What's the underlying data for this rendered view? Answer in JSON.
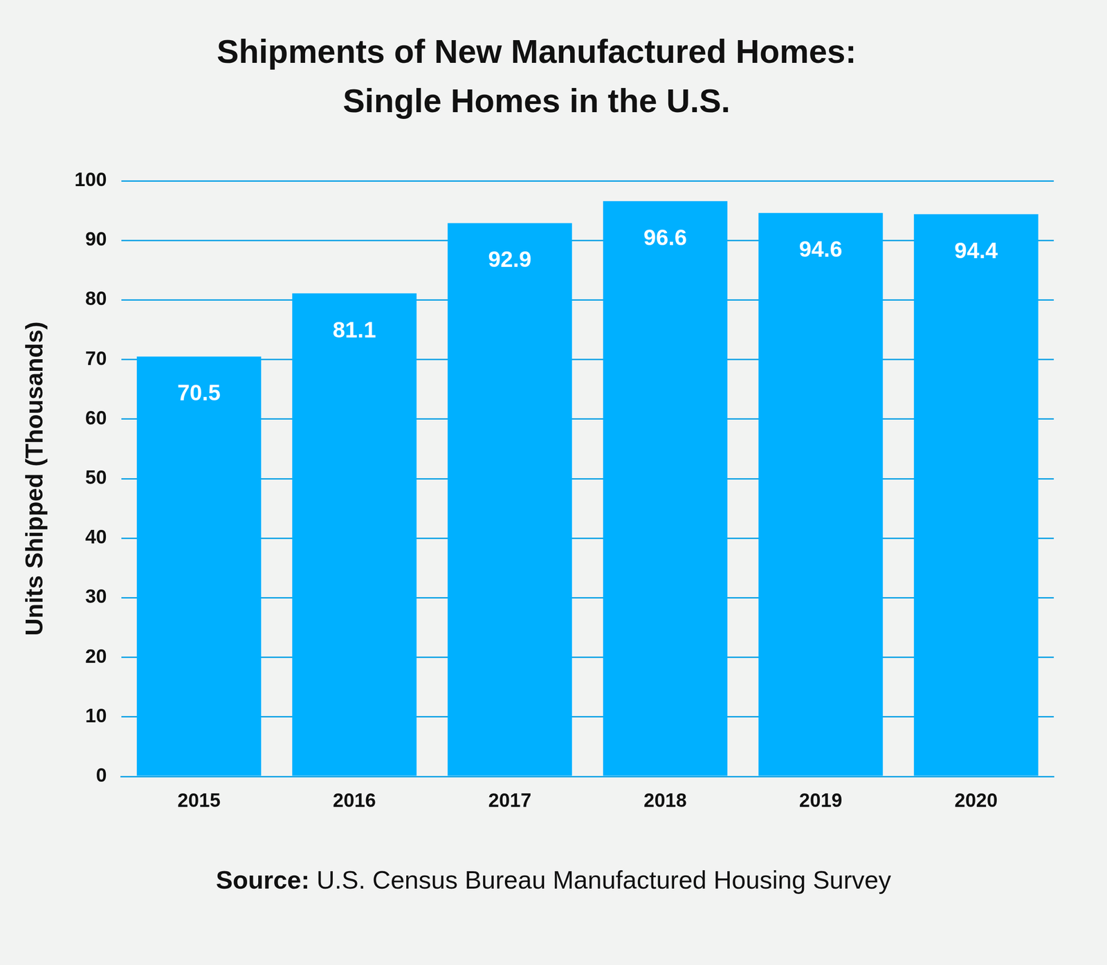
{
  "chart_data": {
    "type": "bar",
    "title": [
      "Shipments of New Manufactured Homes:",
      "Single Homes in the U.S."
    ],
    "y_label": "Units Shipped (Thousands)",
    "categories": [
      "2015",
      "2016",
      "2017",
      "2018",
      "2019",
      "2020"
    ],
    "values": [
      70.5,
      81.1,
      92.9,
      96.6,
      94.6,
      94.4
    ],
    "color": "#00b0ff",
    "ylim": [
      0,
      100
    ],
    "yticks": [
      0,
      10,
      20,
      30,
      40,
      50,
      60,
      70,
      80,
      90,
      100
    ],
    "grid": true,
    "data_labels": true,
    "source": "Source: U.S. Census Bureau Manufactured Housing Survey"
  }
}
